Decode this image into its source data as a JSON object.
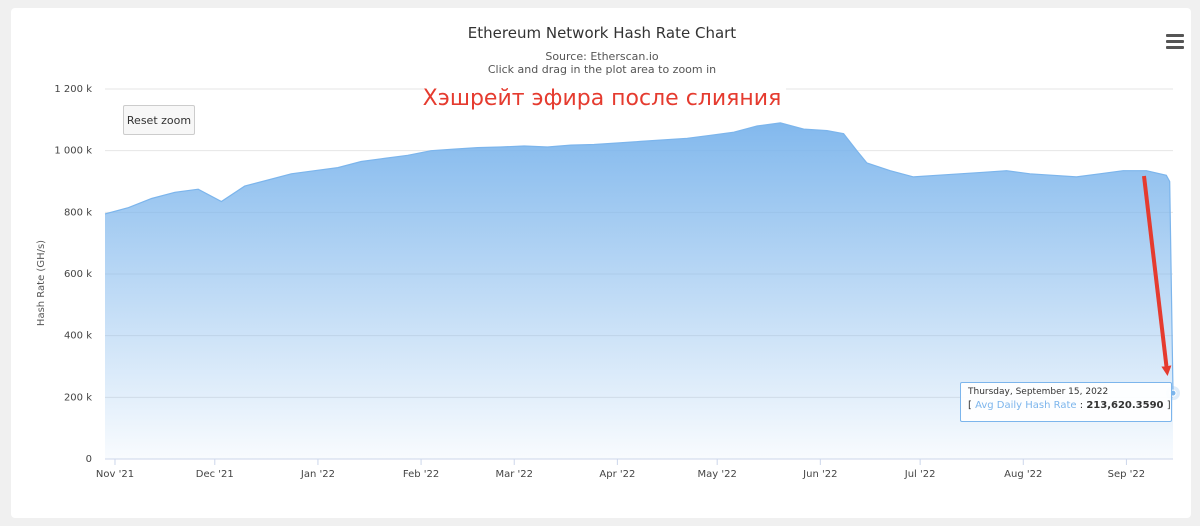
{
  "chart_data": {
    "type": "area",
    "title": "Ethereum Network Hash Rate Chart",
    "subtitle_source": "Source: Etherscan.io",
    "subtitle_hint": "Click and drag in the plot area to zoom in",
    "ylabel": "Hash Rate (GH/s)",
    "xlabel": "",
    "ylim": [
      0,
      1200000
    ],
    "y_ticks": [
      {
        "value": 0,
        "label": "0"
      },
      {
        "value": 200000,
        "label": "200 k"
      },
      {
        "value": 400000,
        "label": "400 k"
      },
      {
        "value": 600000,
        "label": "600 k"
      },
      {
        "value": 800000,
        "label": "800 k"
      },
      {
        "value": 1000000,
        "label": "1 000 k"
      },
      {
        "value": 1200000,
        "label": "1 200 k"
      }
    ],
    "x_range": [
      "2021-10-29",
      "2022-09-15"
    ],
    "x_ticks": [
      {
        "date": "2021-11-01",
        "label": "Nov '21"
      },
      {
        "date": "2021-12-01",
        "label": "Dec '21"
      },
      {
        "date": "2022-01-01",
        "label": "Jan '22"
      },
      {
        "date": "2022-02-01",
        "label": "Feb '22"
      },
      {
        "date": "2022-03-01",
        "label": "Mar '22"
      },
      {
        "date": "2022-04-01",
        "label": "Apr '22"
      },
      {
        "date": "2022-05-01",
        "label": "May '22"
      },
      {
        "date": "2022-06-01",
        "label": "Jun '22"
      },
      {
        "date": "2022-07-01",
        "label": "Jul '22"
      },
      {
        "date": "2022-08-01",
        "label": "Aug '22"
      },
      {
        "date": "2022-09-01",
        "label": "Sep '22"
      }
    ],
    "series": [
      {
        "name": "Avg Daily Hash Rate",
        "color": "#7cb5ec",
        "points": [
          [
            "2021-10-29",
            795000
          ],
          [
            "2021-11-05",
            815000
          ],
          [
            "2021-11-12",
            845000
          ],
          [
            "2021-11-19",
            865000
          ],
          [
            "2021-11-26",
            875000
          ],
          [
            "2021-12-03",
            835000
          ],
          [
            "2021-12-10",
            885000
          ],
          [
            "2021-12-17",
            905000
          ],
          [
            "2021-12-24",
            925000
          ],
          [
            "2021-12-31",
            935000
          ],
          [
            "2022-01-07",
            945000
          ],
          [
            "2022-01-14",
            965000
          ],
          [
            "2022-01-21",
            975000
          ],
          [
            "2022-01-28",
            985000
          ],
          [
            "2022-02-04",
            1000000
          ],
          [
            "2022-02-11",
            1005000
          ],
          [
            "2022-02-18",
            1010000
          ],
          [
            "2022-02-25",
            1012000
          ],
          [
            "2022-03-04",
            1015000
          ],
          [
            "2022-03-11",
            1012000
          ],
          [
            "2022-03-18",
            1018000
          ],
          [
            "2022-03-25",
            1020000
          ],
          [
            "2022-04-01",
            1025000
          ],
          [
            "2022-04-08",
            1030000
          ],
          [
            "2022-04-15",
            1035000
          ],
          [
            "2022-04-22",
            1040000
          ],
          [
            "2022-04-29",
            1050000
          ],
          [
            "2022-05-06",
            1060000
          ],
          [
            "2022-05-13",
            1080000
          ],
          [
            "2022-05-20",
            1090000
          ],
          [
            "2022-05-27",
            1070000
          ],
          [
            "2022-06-03",
            1065000
          ],
          [
            "2022-06-08",
            1055000
          ],
          [
            "2022-06-12",
            1000000
          ],
          [
            "2022-06-15",
            960000
          ],
          [
            "2022-06-22",
            935000
          ],
          [
            "2022-06-29",
            915000
          ],
          [
            "2022-07-06",
            920000
          ],
          [
            "2022-07-13",
            925000
          ],
          [
            "2022-07-20",
            930000
          ],
          [
            "2022-07-27",
            935000
          ],
          [
            "2022-08-03",
            925000
          ],
          [
            "2022-08-10",
            920000
          ],
          [
            "2022-08-17",
            915000
          ],
          [
            "2022-08-24",
            925000
          ],
          [
            "2022-08-31",
            935000
          ],
          [
            "2022-09-07",
            935000
          ],
          [
            "2022-09-13",
            920000
          ],
          [
            "2022-09-14",
            900000
          ],
          [
            "2022-09-15",
            213620
          ]
        ]
      }
    ],
    "annotation": "Хэшрейт эфира после слияния",
    "grid": true,
    "legend": "none"
  },
  "ui": {
    "reset_zoom": "Reset zoom",
    "menu_icon": "hamburger-menu-icon",
    "annotation_color": "#e53b2f"
  },
  "tooltip": {
    "date": "Thursday, September 15, 2022",
    "open_bracket": "[",
    "series": "Avg Daily Hash Rate",
    "colon": ":",
    "value": "213,620.3590",
    "close_bracket": "]"
  }
}
